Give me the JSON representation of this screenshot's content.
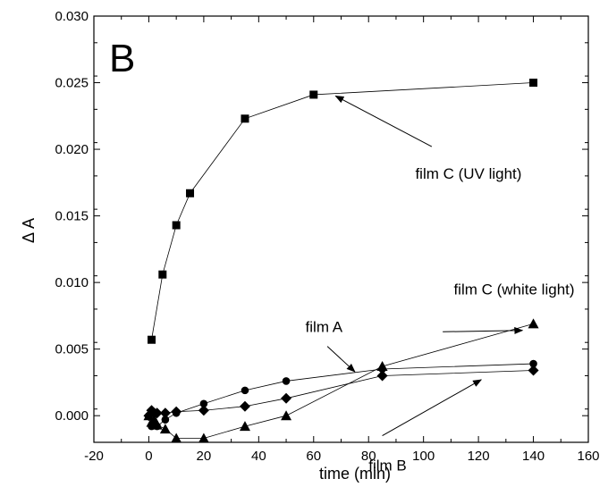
{
  "chart_data": {
    "type": "line",
    "panel_label": "B",
    "xlabel": "time (min)",
    "ylabel": "Δ A",
    "xlim": [
      -20,
      160
    ],
    "ylim": [
      -0.002,
      0.03
    ],
    "x_ticks": [
      -20,
      0,
      20,
      40,
      60,
      80,
      100,
      120,
      140,
      160
    ],
    "y_ticks": [
      0.0,
      0.005,
      0.01,
      0.015,
      0.02,
      0.025,
      0.03
    ],
    "x_tick_labels": [
      "-20",
      "0",
      "20",
      "40",
      "60",
      "80",
      "100",
      "120",
      "140",
      "160"
    ],
    "y_tick_labels": [
      "0.000",
      "0.005",
      "0.010",
      "0.015",
      "0.020",
      "0.025",
      "0.030"
    ],
    "grid": false,
    "legend": "none",
    "series": [
      {
        "marker": "square",
        "x": [
          1,
          5,
          10,
          15,
          35,
          60,
          140
        ],
        "y": [
          0.0057,
          0.0106,
          0.0143,
          0.0167,
          0.0223,
          0.0241,
          0.025
        ]
      },
      {
        "marker": "triangle",
        "x": [
          0,
          1,
          2,
          3,
          6,
          10,
          20,
          35,
          50,
          85,
          140
        ],
        "y": [
          0.0,
          -0.0005,
          -0.0003,
          -0.0007,
          -0.001,
          -0.0017,
          -0.0017,
          -0.0008,
          0.0,
          0.0037,
          0.0069
        ]
      },
      {
        "marker": "circle",
        "x": [
          0,
          1,
          2,
          3,
          6,
          10,
          20,
          35,
          50,
          85,
          140
        ],
        "y": [
          0.0,
          -0.0008,
          -0.0006,
          -0.0008,
          -0.0003,
          0.0002,
          0.0009,
          0.0019,
          0.0026,
          0.0035,
          0.0039
        ]
      },
      {
        "marker": "diamond",
        "x": [
          0,
          1,
          2,
          3,
          6,
          10,
          20,
          35,
          50,
          85,
          140
        ],
        "y": [
          0.0,
          0.0004,
          0.0002,
          0.0002,
          0.0002,
          0.0003,
          0.0004,
          0.0007,
          0.0013,
          0.003,
          0.0034
        ]
      }
    ],
    "annotations": [
      {
        "text": "film C (UV light)",
        "text_x": 97,
        "text_y": 0.0178,
        "arrow_from": [
          103,
          0.0202
        ],
        "arrow_to": [
          68,
          0.024
        ]
      },
      {
        "text": "film C (white light)",
        "text_x": 111,
        "text_y": 0.0091,
        "arrow_from": [
          107,
          0.0063
        ],
        "arrow_to": [
          136,
          0.0064
        ]
      },
      {
        "text": "film A",
        "text_x": 57,
        "text_y": 0.0063,
        "arrow_from": [
          65,
          0.0052
        ],
        "arrow_to": [
          75,
          0.0033
        ]
      },
      {
        "text": "film B",
        "text_x": 80,
        "text_y": -0.0041,
        "arrow_from": [
          85,
          -0.0015
        ],
        "arrow_to": [
          121,
          0.0027
        ]
      }
    ]
  }
}
